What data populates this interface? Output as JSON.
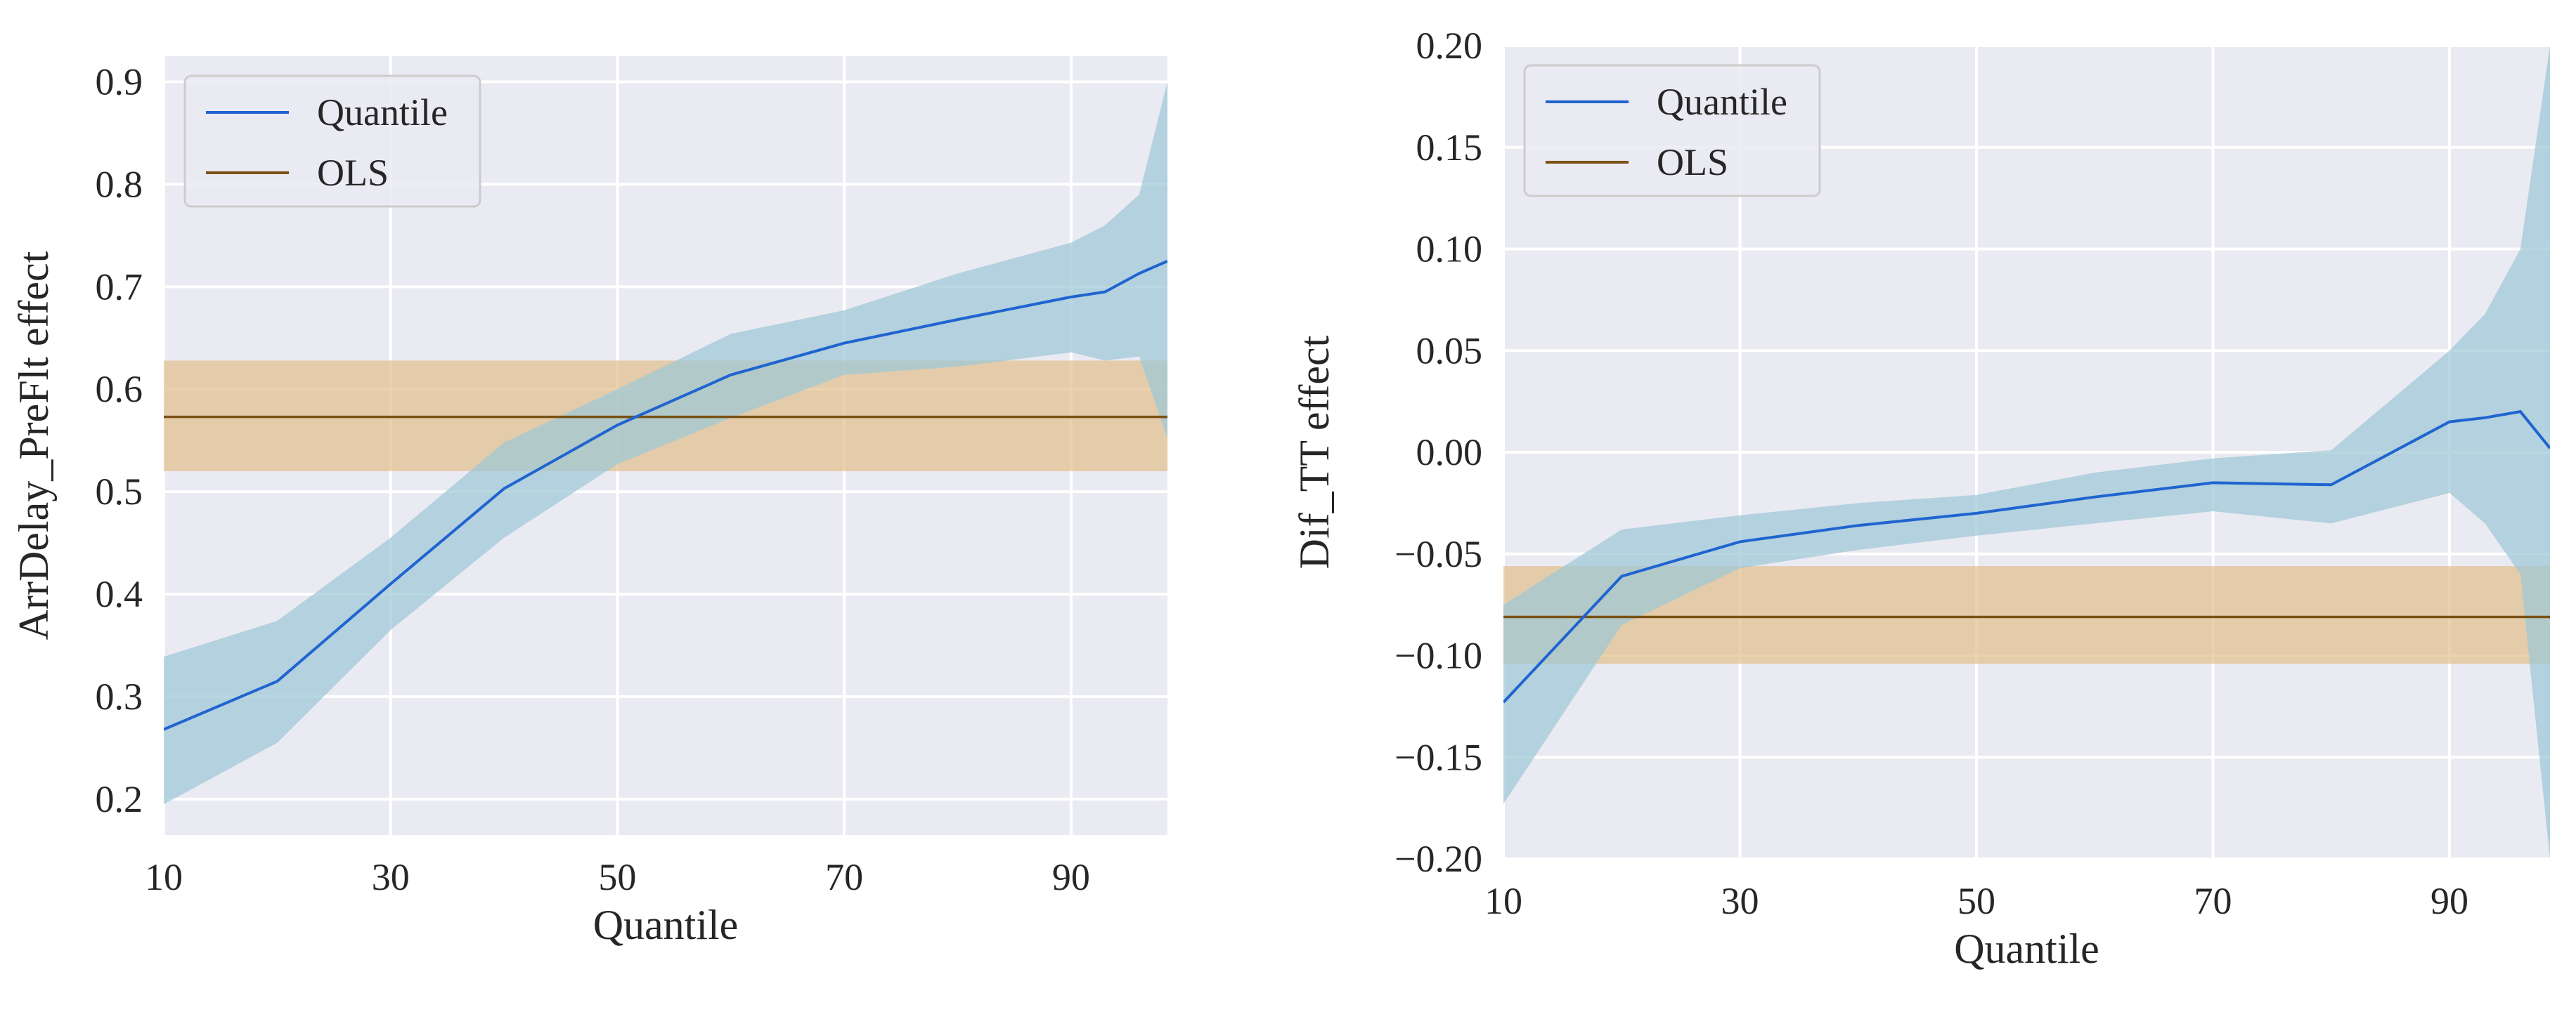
{
  "colors": {
    "background": "#ffffff",
    "axes_background": "#eaeaf2",
    "grid": "#ffffff",
    "quantile_line": "#1f64d0",
    "quantile_band": "#9ec7d6",
    "ols_line": "#7a5214",
    "ols_band": "#e2c08f",
    "text": "#262626"
  },
  "chart_data": [
    {
      "type": "line",
      "xlabel": "Quantile",
      "ylabel": "ArrDelay_PreFlt effect",
      "xlim": [
        10,
        98.5
      ],
      "ylim": [
        0.165,
        0.925
      ],
      "xticks": [
        10,
        30,
        50,
        70,
        90
      ],
      "xtick_labels": [
        "10",
        "30",
        "50",
        "70",
        "90"
      ],
      "yticks": [
        0.2,
        0.3,
        0.4,
        0.5,
        0.6,
        0.7,
        0.8,
        0.9
      ],
      "ytick_labels": [
        "0.2",
        "0.3",
        "0.4",
        "0.5",
        "0.6",
        "0.7",
        "0.8",
        "0.9"
      ],
      "grid": true,
      "legend": {
        "position": "top-left",
        "entries": [
          "Quantile",
          "OLS"
        ]
      },
      "series": [
        {
          "name": "Quantile",
          "x": [
            10,
            20,
            30,
            40,
            50,
            60,
            70,
            80,
            90,
            93,
            96,
            98.5
          ],
          "values": [
            0.268,
            0.315,
            0.41,
            0.503,
            0.565,
            0.614,
            0.645,
            0.668,
            0.69,
            0.695,
            0.713,
            0.725
          ],
          "lower": [
            0.195,
            0.255,
            0.365,
            0.455,
            0.527,
            0.572,
            0.614,
            0.622,
            0.636,
            0.628,
            0.632,
            0.552
          ],
          "upper": [
            0.339,
            0.374,
            0.455,
            0.548,
            0.6,
            0.654,
            0.677,
            0.713,
            0.743,
            0.76,
            0.79,
            0.9
          ]
        },
        {
          "name": "OLS",
          "value": 0.573,
          "lower": 0.52,
          "upper": 0.628
        }
      ]
    },
    {
      "type": "line",
      "xlabel": "Quantile",
      "ylabel": "Dif_TT effect",
      "xlim": [
        10,
        98.5
      ],
      "ylim": [
        -0.2,
        0.2
      ],
      "xticks": [
        10,
        30,
        50,
        70,
        90
      ],
      "xtick_labels": [
        "10",
        "30",
        "50",
        "70",
        "90"
      ],
      "yticks": [
        -0.2,
        -0.15,
        -0.1,
        -0.05,
        0.0,
        0.05,
        0.1,
        0.15,
        0.2
      ],
      "ytick_labels": [
        "−0.20",
        "−0.15",
        "−0.10",
        "−0.05",
        "0.00",
        "0.05",
        "0.10",
        "0.15",
        "0.20"
      ],
      "grid": true,
      "legend": {
        "position": "top-left",
        "entries": [
          "Quantile",
          "OLS"
        ]
      },
      "series": [
        {
          "name": "Quantile",
          "x": [
            10,
            20,
            30,
            40,
            50,
            60,
            70,
            80,
            90,
            93,
            96,
            98.5
          ],
          "values": [
            -0.123,
            -0.061,
            -0.044,
            -0.036,
            -0.03,
            -0.022,
            -0.015,
            -0.016,
            0.015,
            0.017,
            0.02,
            0.002
          ],
          "lower": [
            -0.173,
            -0.085,
            -0.057,
            -0.048,
            -0.041,
            -0.035,
            -0.029,
            -0.035,
            -0.02,
            -0.035,
            -0.06,
            -0.2
          ],
          "upper": [
            -0.075,
            -0.038,
            -0.031,
            -0.025,
            -0.021,
            -0.01,
            -0.003,
            0.001,
            0.05,
            0.068,
            0.1,
            0.2
          ]
        },
        {
          "name": "OLS",
          "value": -0.081,
          "lower": -0.104,
          "upper": -0.056
        }
      ]
    }
  ]
}
